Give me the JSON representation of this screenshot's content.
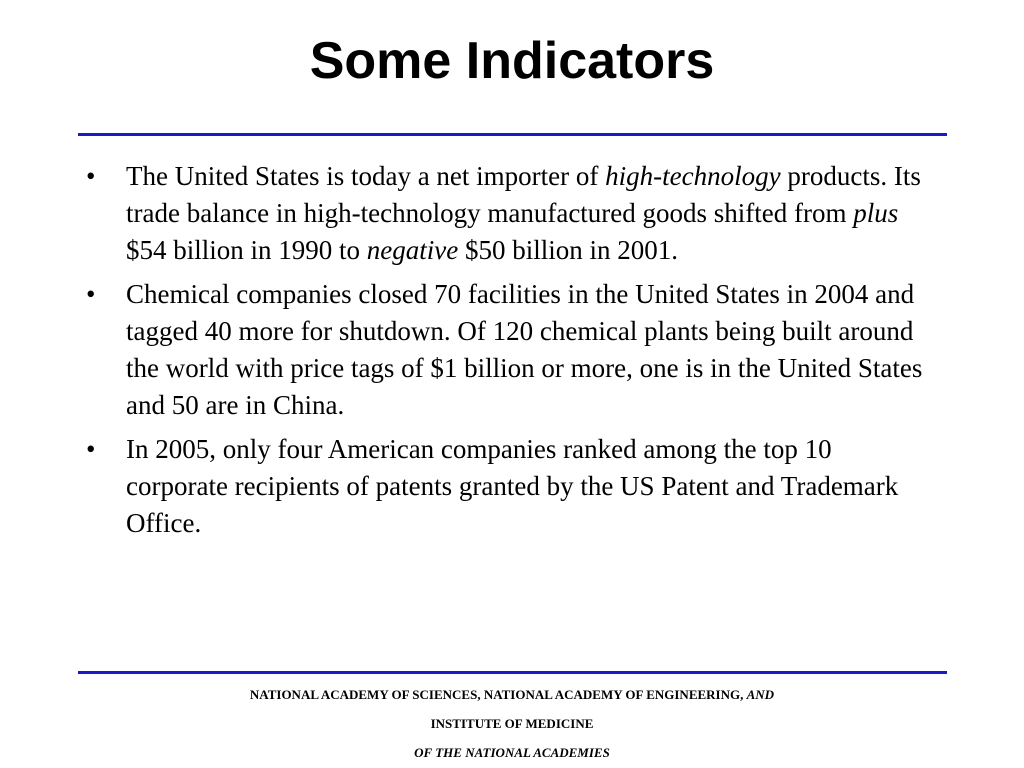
{
  "slide": {
    "title": "Some Indicators"
  },
  "bullets": [
    {
      "segments": [
        {
          "text": "The United States is today a net importer of ",
          "italic": false
        },
        {
          "text": "high-technology",
          "italic": true
        },
        {
          "text": " products. Its trade balance in high-technology manufactured goods shifted from ",
          "italic": false
        },
        {
          "text": "plus",
          "italic": true
        },
        {
          "text": " $54 billion in 1990 to ",
          "italic": false
        },
        {
          "text": "negative",
          "italic": true
        },
        {
          "text": " $50 billion in 2001.",
          "italic": false
        }
      ]
    },
    {
      "segments": [
        {
          "text": " Chemical companies closed 70 facilities in the United States in 2004 and tagged 40 more for shutdown. Of 120 chemical plants being built around the world with price tags of $1 billion or more, one is in the United States and 50 are in China.",
          "italic": false
        }
      ]
    },
    {
      "segments": [
        {
          "text": "In 2005, only four American companies ranked among the top 10 corporate recipients of patents granted by the US Patent and Trademark Office.",
          "italic": false
        }
      ]
    }
  ],
  "bullet_symbol": "•",
  "footer": {
    "line1_text": "NATIONAL ACADEMY OF SCIENCES, NATIONAL ACADEMY OF ENGINEERING, ",
    "line1_italic": "AND",
    "line2": "INSTITUTE OF MEDICINE",
    "line3": "OF THE NATIONAL ACADEMIES"
  },
  "colors": {
    "rule": "#1a1ac8"
  }
}
